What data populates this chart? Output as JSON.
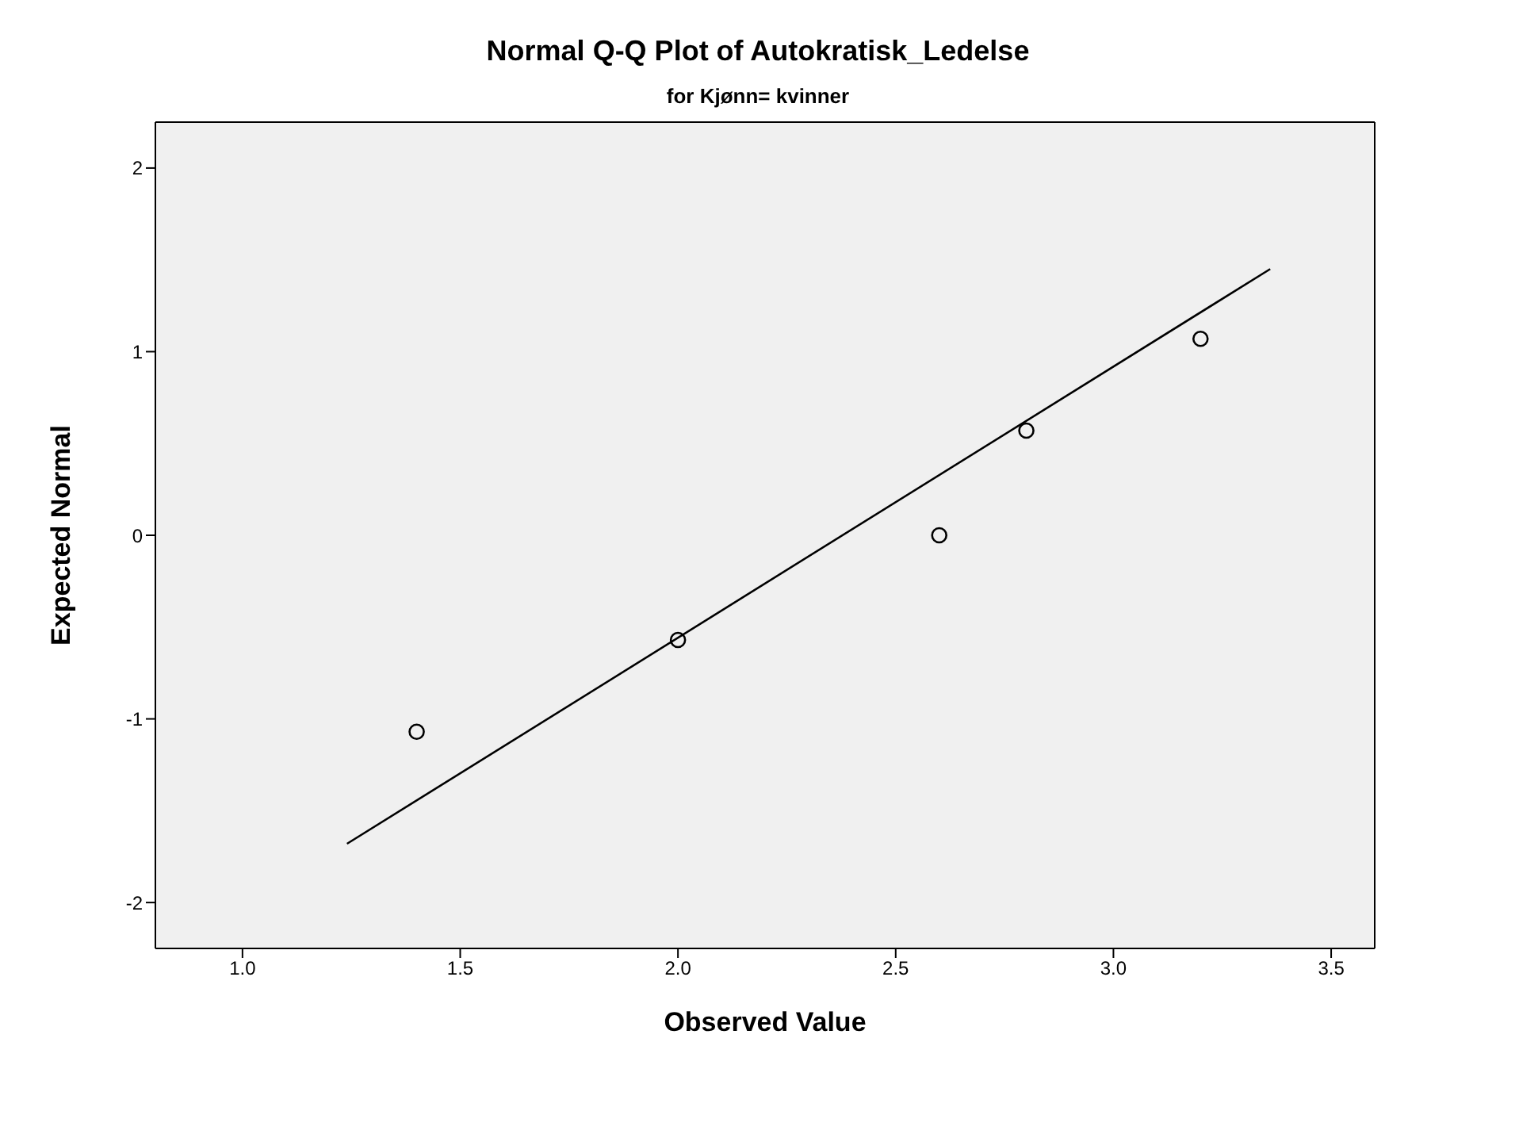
{
  "chart_data": {
    "type": "scatter",
    "title": "Normal Q-Q Plot of Autokratisk_Ledelse",
    "subtitle": "for Kjønn= kvinner",
    "xlabel": "Observed Value",
    "ylabel": "Expected Normal",
    "series": [
      {
        "color": "#000000",
        "marker": "circle",
        "x": [
          1.4,
          2.0,
          2.6,
          2.8,
          3.2
        ],
        "values": [
          -1.07,
          -0.57,
          0,
          0.57,
          1.07
        ]
      },
      {
        "type": "line",
        "color": "#000000",
        "marker": "none",
        "x": [
          1.24,
          3.36
        ],
        "values": [
          -1.68,
          1.45
        ]
      }
    ],
    "xlim": [
      0.8,
      3.6
    ],
    "xticks": [
      {
        "value": 1,
        "label": "1.0"
      },
      {
        "value": 1.5,
        "label": "1.5"
      },
      {
        "value": 2,
        "label": "2.0"
      },
      {
        "value": 2.5,
        "label": "2.5"
      },
      {
        "value": 3,
        "label": "3.0"
      },
      {
        "value": 3.5,
        "label": "3.5"
      }
    ],
    "ylim": [
      -2.25,
      2.25
    ],
    "yticks": [
      -2,
      -1,
      0,
      1,
      2
    ],
    "grid": false,
    "legend": false
  }
}
